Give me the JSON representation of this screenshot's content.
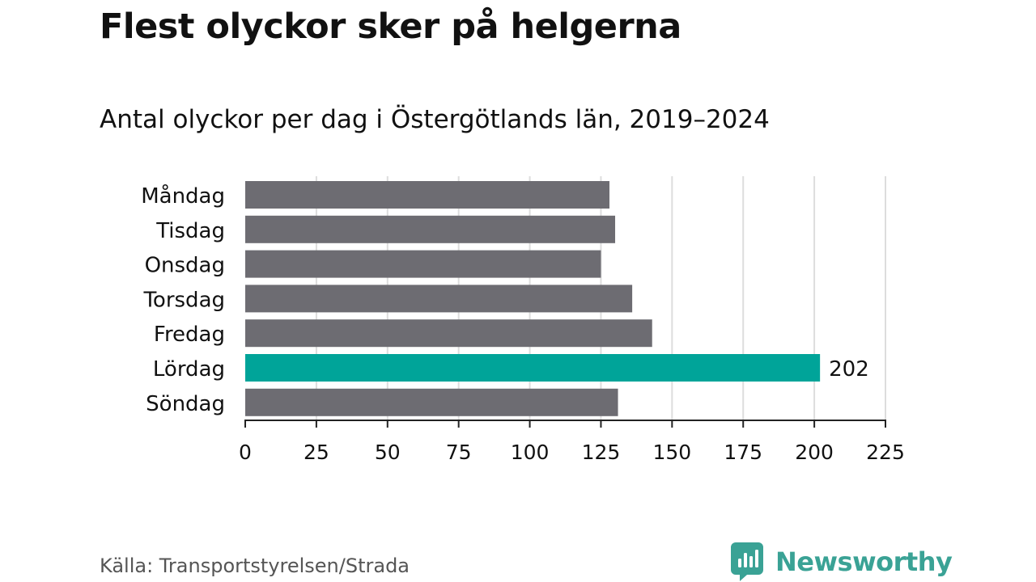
{
  "header": {
    "title": "Flest olyckor sker på helgerna",
    "subtitle": "Antal olyckor per dag i Östergötlands län, 2019–2024"
  },
  "footer": {
    "source": "Källa: Transportstyrelsen/Strada",
    "brand": "Newsworthy",
    "brand_icon": "newsworthy-logo-icon",
    "brand_color": "#3aa295"
  },
  "colors": {
    "bar_default": "#6d6c72",
    "bar_highlight": "#00a499",
    "grid": "#dddddd",
    "axis": "#222222",
    "text": "#111111"
  },
  "chart_data": {
    "type": "bar",
    "orientation": "horizontal",
    "categories": [
      "Måndag",
      "Tisdag",
      "Onsdag",
      "Torsdag",
      "Fredag",
      "Lördag",
      "Söndag"
    ],
    "values": [
      128,
      130,
      125,
      136,
      143,
      202,
      131
    ],
    "highlight_category": "Lördag",
    "data_labels": [
      {
        "category": "Lördag",
        "text": "202"
      }
    ],
    "xlim": [
      0,
      225
    ],
    "x_ticks": [
      0,
      25,
      50,
      75,
      100,
      125,
      150,
      175,
      200,
      225
    ],
    "grid": true,
    "legend": "none"
  }
}
